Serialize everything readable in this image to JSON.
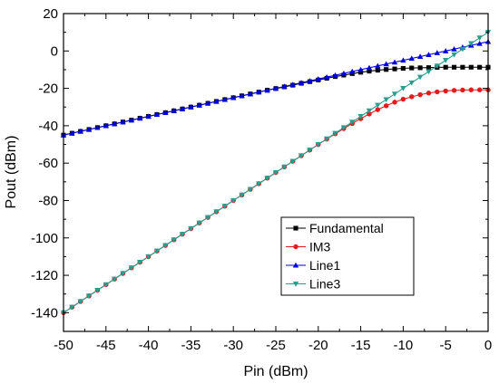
{
  "chart_data": {
    "type": "line",
    "xlabel": "Pin (dBm)",
    "ylabel": "Pout (dBm)",
    "xlim": [
      -50,
      0
    ],
    "ylim": [
      -150,
      20
    ],
    "xticks": [
      -50,
      -45,
      -40,
      -35,
      -30,
      -25,
      -20,
      -15,
      -10,
      -5,
      0
    ],
    "yticks": [
      20,
      0,
      -20,
      -40,
      -60,
      -80,
      -100,
      -120,
      -140
    ],
    "grid": false,
    "legend_position": "lower-right",
    "series": [
      {
        "name": "Fundamental",
        "color": "#000000",
        "marker": "square",
        "points": [
          [
            -50,
            -45
          ],
          [
            -49,
            -44
          ],
          [
            -48,
            -43
          ],
          [
            -47,
            -42
          ],
          [
            -46,
            -41
          ],
          [
            -45,
            -40
          ],
          [
            -44,
            -39
          ],
          [
            -43,
            -38
          ],
          [
            -42,
            -37
          ],
          [
            -41,
            -36
          ],
          [
            -40,
            -35
          ],
          [
            -39,
            -34
          ],
          [
            -38,
            -33
          ],
          [
            -37,
            -32
          ],
          [
            -36,
            -31
          ],
          [
            -35,
            -30
          ],
          [
            -34,
            -29
          ],
          [
            -33,
            -28
          ],
          [
            -32,
            -27
          ],
          [
            -31,
            -26
          ],
          [
            -30,
            -25
          ],
          [
            -29,
            -24
          ],
          [
            -28,
            -23
          ],
          [
            -27,
            -22
          ],
          [
            -26,
            -21
          ],
          [
            -25,
            -20.1
          ],
          [
            -24,
            -19.2
          ],
          [
            -23,
            -18.3
          ],
          [
            -22,
            -17.3
          ],
          [
            -21,
            -16.4
          ],
          [
            -20,
            -15.5
          ],
          [
            -19,
            -14.6
          ],
          [
            -18,
            -13.7
          ],
          [
            -17,
            -12.9
          ],
          [
            -16,
            -12.1
          ],
          [
            -15,
            -11.4
          ],
          [
            -14,
            -10.8
          ],
          [
            -13,
            -10.3
          ],
          [
            -12,
            -9.9
          ],
          [
            -11,
            -9.6
          ],
          [
            -10,
            -9.3
          ],
          [
            -9,
            -9.1
          ],
          [
            -8,
            -9
          ],
          [
            -7,
            -8.9
          ],
          [
            -6,
            -8.8
          ],
          [
            -5,
            -8.7
          ],
          [
            -4,
            -8.7
          ],
          [
            -3,
            -8.7
          ],
          [
            -2,
            -8.7
          ],
          [
            -1,
            -8.7
          ],
          [
            0,
            -8.7
          ]
        ]
      },
      {
        "name": "IM3",
        "color": "#e41a1c",
        "marker": "circle",
        "points": [
          [
            -50,
            -140
          ],
          [
            -49,
            -137
          ],
          [
            -48,
            -134
          ],
          [
            -47,
            -131
          ],
          [
            -46,
            -128
          ],
          [
            -45,
            -125
          ],
          [
            -44,
            -122
          ],
          [
            -43,
            -119
          ],
          [
            -42,
            -116
          ],
          [
            -41,
            -113
          ],
          [
            -40,
            -110
          ],
          [
            -39,
            -107
          ],
          [
            -38,
            -104
          ],
          [
            -37,
            -101
          ],
          [
            -36,
            -98
          ],
          [
            -35,
            -95
          ],
          [
            -34,
            -92
          ],
          [
            -33,
            -89
          ],
          [
            -32,
            -86
          ],
          [
            -31,
            -83
          ],
          [
            -30,
            -80
          ],
          [
            -29,
            -77
          ],
          [
            -28,
            -74
          ],
          [
            -27,
            -71
          ],
          [
            -26,
            -68
          ],
          [
            -25,
            -65
          ],
          [
            -24,
            -62
          ],
          [
            -23,
            -59
          ],
          [
            -22,
            -56
          ],
          [
            -21,
            -53
          ],
          [
            -20,
            -50
          ],
          [
            -19,
            -47.1
          ],
          [
            -18,
            -44.3
          ],
          [
            -17,
            -41.5
          ],
          [
            -16,
            -38.8
          ],
          [
            -15,
            -36.2
          ],
          [
            -14,
            -33.7
          ],
          [
            -13,
            -31.4
          ],
          [
            -12,
            -29.3
          ],
          [
            -11,
            -27.4
          ],
          [
            -10,
            -25.8
          ],
          [
            -9,
            -24.5
          ],
          [
            -8,
            -23.4
          ],
          [
            -7,
            -22.5
          ],
          [
            -6,
            -21.9
          ],
          [
            -5,
            -21.4
          ],
          [
            -4,
            -21.1
          ],
          [
            -3,
            -20.9
          ],
          [
            -2,
            -20.8
          ],
          [
            -1,
            -20.8
          ],
          [
            0,
            -20.8
          ]
        ]
      },
      {
        "name": "Line1",
        "color": "#0000e0",
        "marker": "triangle-up",
        "points": [
          [
            -50,
            -45
          ],
          [
            -49,
            -44
          ],
          [
            -48,
            -43
          ],
          [
            -47,
            -42
          ],
          [
            -46,
            -41
          ],
          [
            -45,
            -40
          ],
          [
            -44,
            -39
          ],
          [
            -43,
            -38
          ],
          [
            -42,
            -37
          ],
          [
            -41,
            -36
          ],
          [
            -40,
            -35
          ],
          [
            -39,
            -34
          ],
          [
            -38,
            -33
          ],
          [
            -37,
            -32
          ],
          [
            -36,
            -31
          ],
          [
            -35,
            -30
          ],
          [
            -34,
            -29
          ],
          [
            -33,
            -28
          ],
          [
            -32,
            -27
          ],
          [
            -31,
            -26
          ],
          [
            -30,
            -25
          ],
          [
            -29,
            -24
          ],
          [
            -28,
            -23
          ],
          [
            -27,
            -22
          ],
          [
            -26,
            -21
          ],
          [
            -25,
            -20
          ],
          [
            -24,
            -19
          ],
          [
            -23,
            -18
          ],
          [
            -22,
            -17
          ],
          [
            -21,
            -16
          ],
          [
            -20,
            -15
          ],
          [
            -19,
            -14
          ],
          [
            -18,
            -13
          ],
          [
            -17,
            -12
          ],
          [
            -16,
            -11
          ],
          [
            -15,
            -10
          ],
          [
            -14,
            -9
          ],
          [
            -13,
            -8
          ],
          [
            -12,
            -7
          ],
          [
            -11,
            -6
          ],
          [
            -10,
            -5
          ],
          [
            -9,
            -4
          ],
          [
            -8,
            -3
          ],
          [
            -7,
            -2
          ],
          [
            -6,
            -1
          ],
          [
            -5,
            0
          ],
          [
            -4,
            1
          ],
          [
            -3,
            2
          ],
          [
            -2,
            3
          ],
          [
            -1,
            4
          ],
          [
            0,
            5
          ]
        ]
      },
      {
        "name": "Line3",
        "color": "#2a9d8f",
        "marker": "triangle-down",
        "points": [
          [
            -50,
            -140
          ],
          [
            -49,
            -137
          ],
          [
            -48,
            -134
          ],
          [
            -47,
            -131
          ],
          [
            -46,
            -128
          ],
          [
            -45,
            -125
          ],
          [
            -44,
            -122
          ],
          [
            -43,
            -119
          ],
          [
            -42,
            -116
          ],
          [
            -41,
            -113
          ],
          [
            -40,
            -110
          ],
          [
            -39,
            -107
          ],
          [
            -38,
            -104
          ],
          [
            -37,
            -101
          ],
          [
            -36,
            -98
          ],
          [
            -35,
            -95
          ],
          [
            -34,
            -92
          ],
          [
            -33,
            -89
          ],
          [
            -32,
            -86
          ],
          [
            -31,
            -83
          ],
          [
            -30,
            -80
          ],
          [
            -29,
            -77
          ],
          [
            -28,
            -74
          ],
          [
            -27,
            -71
          ],
          [
            -26,
            -68
          ],
          [
            -25,
            -65
          ],
          [
            -24,
            -62
          ],
          [
            -23,
            -59
          ],
          [
            -22,
            -56
          ],
          [
            -21,
            -53
          ],
          [
            -20,
            -50
          ],
          [
            -19,
            -47
          ],
          [
            -18,
            -44
          ],
          [
            -17,
            -41
          ],
          [
            -16,
            -38
          ],
          [
            -15,
            -35
          ],
          [
            -14,
            -32
          ],
          [
            -13,
            -29
          ],
          [
            -12,
            -26
          ],
          [
            -11,
            -23
          ],
          [
            -10,
            -20
          ],
          [
            -9,
            -17
          ],
          [
            -8,
            -14
          ],
          [
            -7,
            -11
          ],
          [
            -6,
            -8
          ],
          [
            -5,
            -5
          ],
          [
            -4,
            -2
          ],
          [
            -3,
            1
          ],
          [
            -2,
            4
          ],
          [
            -1,
            7
          ],
          [
            0,
            10
          ]
        ]
      }
    ]
  }
}
